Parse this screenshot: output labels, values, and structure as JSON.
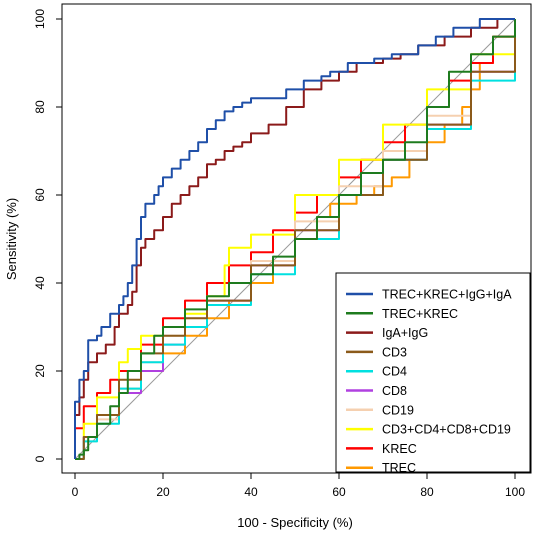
{
  "chart_data": {
    "type": "line",
    "title": "",
    "xlabel": "100 - Specificity (%)",
    "ylabel": "Sensitivity (%)",
    "xlim": [
      0,
      100
    ],
    "ylim": [
      0,
      100
    ],
    "xticks": [
      0,
      20,
      40,
      60,
      80,
      100
    ],
    "yticks": [
      0,
      20,
      40,
      60,
      80,
      100
    ],
    "grid": false,
    "diagonal_reference": true,
    "legend_position": "bottom-right",
    "series": [
      {
        "name": "TREC+KREC+IgG+IgA",
        "color": "#1f4fa8",
        "x": [
          0,
          0,
          1,
          1,
          2,
          3,
          3,
          5,
          6,
          8,
          10,
          11,
          12,
          13,
          14,
          15,
          16,
          18,
          19,
          20,
          22,
          24,
          26,
          28,
          30,
          32,
          34,
          36,
          38,
          40,
          44,
          48,
          52,
          56,
          58,
          62,
          68,
          72,
          78,
          82,
          86,
          92,
          95,
          100
        ],
        "y": [
          0,
          13,
          14,
          18,
          20,
          22,
          27,
          28,
          30,
          33,
          35,
          37,
          40,
          44,
          50,
          55,
          58,
          60,
          62,
          64,
          66,
          68,
          70,
          72,
          75,
          77,
          79,
          80,
          81,
          82,
          82,
          84,
          86,
          87,
          88,
          90,
          91,
          92,
          94,
          96,
          98,
          100,
          100,
          100
        ]
      },
      {
        "name": "TREC+KREC",
        "color": "#1e7b1e",
        "x": [
          0,
          1,
          2,
          3,
          5,
          8,
          10,
          12,
          15,
          18,
          20,
          25,
          30,
          35,
          40,
          45,
          50,
          55,
          60,
          65,
          70,
          75,
          80,
          85,
          90,
          95,
          100
        ],
        "y": [
          0,
          1,
          2,
          5,
          8,
          12,
          15,
          20,
          24,
          28,
          30,
          34,
          37,
          40,
          42,
          46,
          50,
          55,
          60,
          65,
          68,
          72,
          80,
          88,
          92,
          96,
          100
        ]
      },
      {
        "name": "IgA+IgG",
        "color": "#8b1a1a",
        "x": [
          0,
          0,
          1,
          2,
          3,
          5,
          7,
          9,
          10,
          12,
          13,
          14,
          15,
          16,
          18,
          20,
          22,
          24,
          26,
          28,
          30,
          32,
          34,
          36,
          38,
          40,
          44,
          48,
          52,
          56,
          60,
          64,
          70,
          74,
          78,
          84,
          90,
          96,
          100
        ],
        "y": [
          0,
          10,
          14,
          18,
          22,
          24,
          26,
          30,
          33,
          35,
          38,
          44,
          48,
          50,
          52,
          55,
          58,
          60,
          62,
          64,
          67,
          68,
          70,
          71,
          72,
          74,
          76,
          80,
          84,
          86,
          88,
          90,
          91,
          92,
          94,
          96,
          98,
          100,
          100
        ]
      },
      {
        "name": "CD3",
        "color": "#8b5a1a",
        "x": [
          0,
          2,
          5,
          10,
          15,
          20,
          25,
          30,
          40,
          50,
          60,
          70,
          80,
          90,
          100
        ],
        "y": [
          0,
          5,
          10,
          18,
          24,
          28,
          32,
          36,
          44,
          52,
          60,
          68,
          76,
          88,
          100
        ]
      },
      {
        "name": "CD4",
        "color": "#00e0e0",
        "x": [
          0,
          2,
          5,
          10,
          15,
          20,
          25,
          30,
          40,
          50,
          60,
          70,
          80,
          90,
          100
        ],
        "y": [
          0,
          4,
          8,
          16,
          22,
          26,
          30,
          35,
          42,
          50,
          60,
          68,
          75,
          86,
          100
        ]
      },
      {
        "name": "CD8",
        "color": "#b040e0",
        "x": [
          0,
          2,
          5,
          10,
          15,
          20,
          25,
          30,
          40,
          50,
          60,
          70,
          80,
          90,
          100
        ],
        "y": [
          0,
          5,
          10,
          15,
          20,
          26,
          30,
          36,
          44,
          52,
          60,
          68,
          76,
          88,
          100
        ]
      },
      {
        "name": "CD19",
        "color": "#f5d0b0",
        "x": [
          0,
          2,
          5,
          10,
          15,
          20,
          25,
          30,
          40,
          50,
          60,
          70,
          80,
          90,
          100
        ],
        "y": [
          0,
          4,
          9,
          16,
          22,
          28,
          32,
          36,
          45,
          54,
          62,
          70,
          78,
          88,
          100
        ]
      },
      {
        "name": "CD3+CD4+CD8+CD19",
        "color": "#ffff00",
        "x": [
          0,
          2,
          5,
          10,
          12,
          15,
          20,
          25,
          30,
          34,
          35,
          40,
          50,
          60,
          70,
          80,
          90,
          100
        ],
        "y": [
          0,
          8,
          14,
          22,
          25,
          28,
          30,
          33,
          37,
          44,
          48,
          51,
          60,
          68,
          76,
          84,
          92,
          100
        ]
      },
      {
        "name": "KREC",
        "color": "#ff0000",
        "x": [
          0,
          0,
          2,
          5,
          8,
          10,
          15,
          20,
          25,
          30,
          35,
          40,
          45,
          50,
          55,
          60,
          65,
          70,
          75,
          80,
          85,
          90,
          95,
          100
        ],
        "y": [
          0,
          7,
          12,
          15,
          18,
          20,
          26,
          32,
          36,
          40,
          44,
          47,
          52,
          56,
          60,
          64,
          68,
          72,
          76,
          80,
          86,
          90,
          96,
          100
        ]
      },
      {
        "name": "TREC",
        "color": "#ff9900",
        "x": [
          0,
          2,
          5,
          10,
          15,
          20,
          25,
          30,
          35,
          40,
          45,
          50,
          55,
          58,
          60,
          64,
          68,
          72,
          76,
          80,
          84,
          88,
          90,
          92,
          95,
          100
        ],
        "y": [
          0,
          5,
          10,
          16,
          20,
          24,
          28,
          32,
          36,
          40,
          45,
          50,
          55,
          58,
          58,
          60,
          62,
          64,
          68,
          72,
          76,
          80,
          84,
          90,
          96,
          100
        ]
      }
    ]
  }
}
